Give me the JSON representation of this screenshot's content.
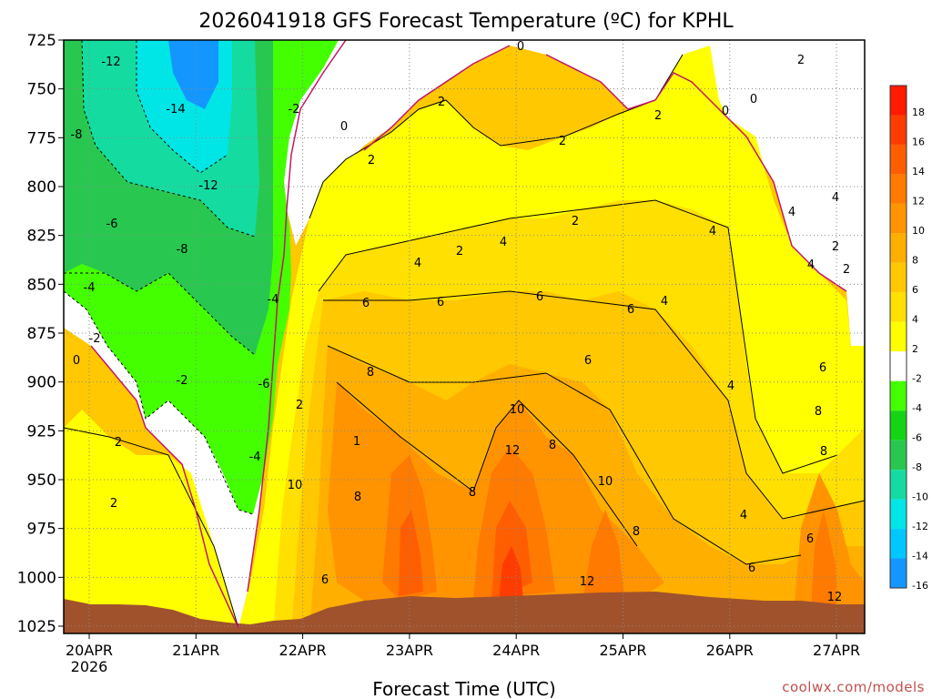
{
  "chart_data": {
    "type": "heatmap",
    "title": "2026041918 GFS Forecast Temperature (ºC) for KPHL",
    "xlabel": "Forecast Time (UTC)",
    "ylabel": "",
    "credit": "coolwx.com/models",
    "y_axis": {
      "ticks": [
        "725",
        "750",
        "775",
        "800",
        "825",
        "850",
        "875",
        "900",
        "925",
        "950",
        "975",
        "1000",
        "1025"
      ],
      "range": [
        725,
        1025
      ],
      "inverted": true
    },
    "x_axis": {
      "ticks": [
        "20APR",
        "21APR",
        "22APR",
        "23APR",
        "24APR",
        "25APR",
        "26APR",
        "27APR"
      ],
      "year_label": "2026"
    },
    "colorbar": {
      "ticks": [
        "18",
        "16",
        "14",
        "12",
        "10",
        "8",
        "6",
        "4",
        "2",
        "-2",
        "-4",
        "-6",
        "-8",
        "-10",
        "-12",
        "-14",
        "-16"
      ],
      "colors": [
        "#ff1a00",
        "#ff3c00",
        "#ff5e00",
        "#ff7a00",
        "#ff9400",
        "#ffaf00",
        "#ffc800",
        "#ffe000",
        "#ffff00",
        "#ffffff",
        "#44ff00",
        "#14d414",
        "#28c850",
        "#14dca0",
        "#00e6e6",
        "#00c8ff",
        "#1496ff"
      ]
    },
    "contour_labels": [
      "-12",
      "-14",
      "-8",
      "-12",
      "-6",
      "-8",
      "-4",
      "-2",
      "0",
      "-2",
      "-6",
      "-4",
      "-4",
      "-2",
      "0",
      "2",
      "2",
      "2",
      "2",
      "0",
      "2",
      "2",
      "0",
      "2",
      "4",
      "4",
      "4",
      "2",
      "4",
      "4",
      "0",
      "2",
      "2",
      "2",
      "6",
      "6",
      "6",
      "6",
      "4",
      "6",
      "8",
      "8",
      "1",
      "8",
      "10",
      "12",
      "8",
      "10",
      "8",
      "6",
      "12",
      "6",
      "10",
      "4",
      "6",
      "8",
      "8",
      "2",
      "4",
      "4",
      "6",
      "12"
    ],
    "grid": true
  }
}
